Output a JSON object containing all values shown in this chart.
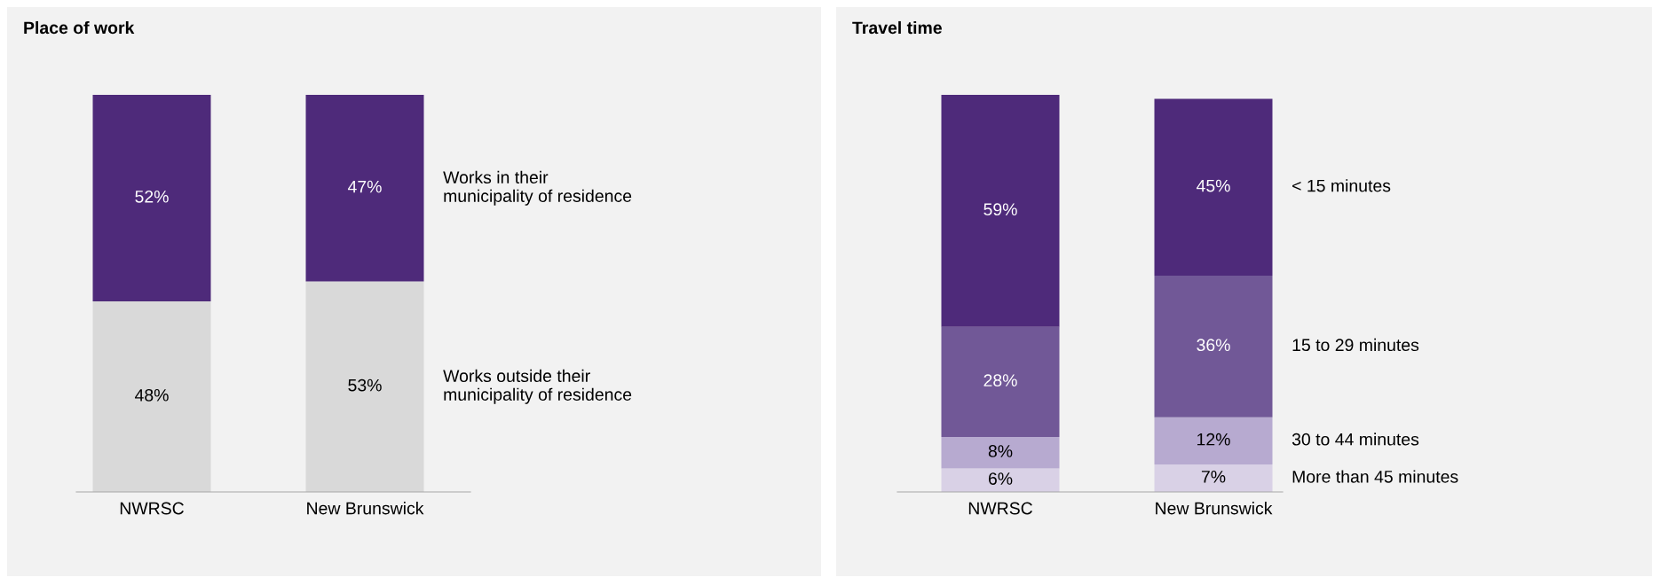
{
  "chart_data": [
    {
      "type": "bar",
      "title": "Place of work",
      "categories": [
        "NWRSC",
        "New Brunswick"
      ],
      "stacked": true,
      "tick_labels": "x",
      "grid": false,
      "legend": false,
      "series": [
        {
          "name": "Works outside their\nmunicipality of residence",
          "color": "#d9d9d9",
          "values": [
            48,
            53
          ],
          "value_labels": [
            "48%",
            "53%"
          ]
        },
        {
          "name": "Works in their\nmunicipality of residence",
          "color": "#4e2a7a",
          "values": [
            52,
            47
          ],
          "value_labels": [
            "52%",
            "47%"
          ]
        }
      ]
    },
    {
      "type": "bar",
      "title": "Travel time",
      "categories": [
        "NWRSC",
        "New Brunswick"
      ],
      "stacked": true,
      "tick_labels": "x",
      "grid": false,
      "legend": false,
      "series": [
        {
          "name": "More than 45 minutes",
          "color": "#d9d1e6",
          "values": [
            6,
            7
          ],
          "value_labels": [
            "6%",
            "7%"
          ]
        },
        {
          "name": "30 to 44 minutes",
          "color": "#b7aad0",
          "values": [
            8,
            12
          ],
          "value_labels": [
            "8%",
            "12%"
          ]
        },
        {
          "name": "15 to 29 minutes",
          "color": "#715897",
          "values": [
            28,
            36
          ],
          "value_labels": [
            "28%",
            "36%"
          ]
        },
        {
          "name": "< 15 minutes",
          "color": "#4e2a7a",
          "values": [
            59,
            45
          ],
          "value_labels": [
            "59%",
            "45%"
          ]
        }
      ]
    }
  ]
}
